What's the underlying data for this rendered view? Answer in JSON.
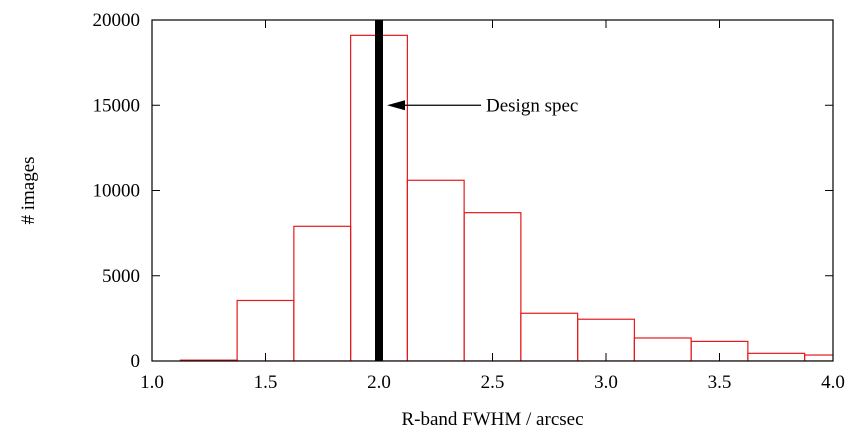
{
  "chart_data": {
    "type": "bar",
    "title": "",
    "xlabel": "R-band FWHM / arcsec",
    "ylabel": "# images",
    "xlim": [
      1.0,
      4.0
    ],
    "ylim": [
      0,
      20000
    ],
    "x_ticks": [
      "1.0",
      "1.5",
      "2.0",
      "2.5",
      "3.0",
      "3.5",
      "4.0"
    ],
    "y_ticks": [
      "0",
      "5000",
      "10000",
      "15000",
      "20000"
    ],
    "bin_width": 0.25,
    "bins": [
      {
        "x0": 1.125,
        "x1": 1.375,
        "value": 50
      },
      {
        "x0": 1.375,
        "x1": 1.625,
        "value": 3550
      },
      {
        "x0": 1.625,
        "x1": 1.875,
        "value": 7900
      },
      {
        "x0": 1.875,
        "x1": 2.125,
        "value": 19100
      },
      {
        "x0": 2.125,
        "x1": 2.375,
        "value": 10600
      },
      {
        "x0": 2.375,
        "x1": 2.625,
        "value": 8700
      },
      {
        "x0": 2.625,
        "x1": 2.875,
        "value": 2800
      },
      {
        "x0": 2.875,
        "x1": 3.125,
        "value": 2450
      },
      {
        "x0": 3.125,
        "x1": 3.375,
        "value": 1350
      },
      {
        "x0": 3.375,
        "x1": 3.625,
        "value": 1150
      },
      {
        "x0": 3.625,
        "x1": 3.875,
        "value": 450
      },
      {
        "x0": 3.875,
        "x1": 4.125,
        "value": 350
      }
    ],
    "bar_color": "#e41a1c",
    "grid": false,
    "legend": "none",
    "reference_line": {
      "x": 2.0,
      "color": "#000000"
    },
    "annotation": {
      "text": "Design spec",
      "arrow_to": {
        "x": 2.0,
        "y": 15000
      }
    }
  }
}
